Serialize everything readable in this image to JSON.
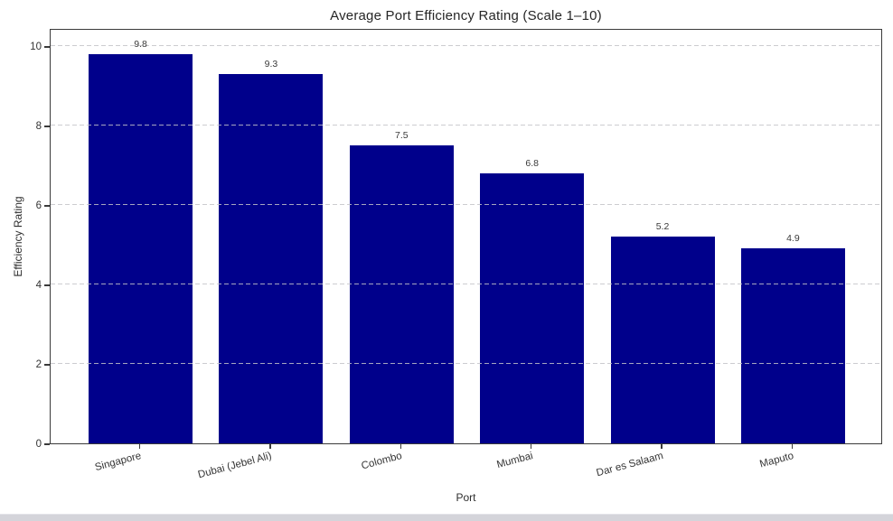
{
  "chart_data": {
    "type": "bar",
    "title": "Average Port Efficiency Rating (Scale 1–10)",
    "xlabel": "Port",
    "ylabel": "Efficiency Rating",
    "categories": [
      "Singapore",
      "Dubai (Jebel Ali)",
      "Colombo",
      "Mumbai",
      "Dar es Salaam",
      "Maputo"
    ],
    "values": [
      9.8,
      9.3,
      7.5,
      6.8,
      5.2,
      4.9
    ],
    "value_labels": [
      "9.8",
      "9.3",
      "7.5",
      "6.8",
      "5.2",
      "4.9"
    ],
    "yticks": [
      0,
      2,
      4,
      6,
      8,
      10
    ],
    "ylim": [
      0,
      10.45
    ],
    "bar_color": "#00008B",
    "grid": "horizontal-dashed",
    "legend": "none",
    "tick_label_rotation_deg": 15
  }
}
